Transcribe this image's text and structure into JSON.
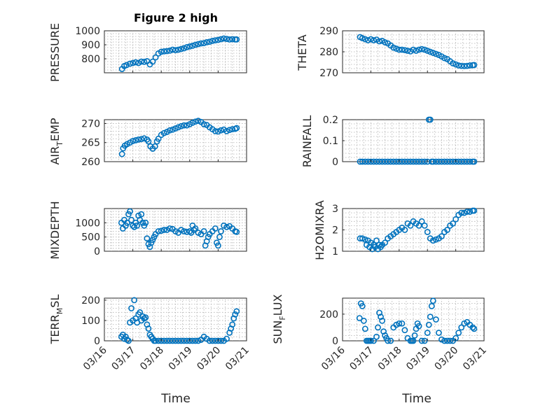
{
  "figure": {
    "title": "Figure 2 high",
    "xlabel": "Time"
  },
  "chart_data": [
    {
      "type": "scatter",
      "name": "pressure",
      "ylabel": "PRESSURE",
      "ylim": [
        700,
        1000
      ],
      "yticks": [
        800,
        900,
        1000
      ],
      "ytick_labels": [
        "800",
        "900",
        "1000"
      ],
      "xlim": [
        0,
        5
      ],
      "xticks": [
        0,
        1,
        2,
        3,
        4,
        5
      ],
      "xtick_labels": [
        "03/16",
        "03/17",
        "03/18",
        "03/19",
        "03/20",
        "03/21"
      ],
      "grid": true,
      "color": "#0072BD",
      "x": [
        0.62,
        0.7,
        0.78,
        0.9,
        1.0,
        1.1,
        1.2,
        1.3,
        1.4,
        1.5,
        1.6,
        1.7,
        1.8,
        1.9,
        2.0,
        2.1,
        2.2,
        2.3,
        2.4,
        2.5,
        2.6,
        2.7,
        2.8,
        2.9,
        3.0,
        3.1,
        3.2,
        3.3,
        3.4,
        3.5,
        3.6,
        3.7,
        3.8,
        3.9,
        4.0,
        4.1,
        4.2,
        4.3,
        4.4,
        4.5,
        4.6,
        4.65
      ],
      "y": [
        727,
        748,
        755,
        765,
        770,
        775,
        770,
        780,
        778,
        783,
        760,
        780,
        810,
        838,
        850,
        853,
        855,
        858,
        865,
        862,
        865,
        870,
        875,
        883,
        888,
        893,
        900,
        905,
        910,
        912,
        918,
        922,
        928,
        932,
        935,
        940,
        945,
        942,
        938,
        940,
        938,
        938
      ]
    },
    {
      "type": "scatter",
      "name": "theta",
      "ylabel": "THETA",
      "ylim": [
        270,
        290
      ],
      "yticks": [
        270,
        280,
        290
      ],
      "ytick_labels": [
        "270",
        "280",
        "290"
      ],
      "xlim": [
        0,
        5
      ],
      "xticks": [
        0,
        1,
        2,
        3,
        4,
        5
      ],
      "xtick_labels": [
        "03/16",
        "03/17",
        "03/18",
        "03/19",
        "03/20",
        "03/21"
      ],
      "grid": true,
      "color": "#0072BD",
      "x": [
        0.62,
        0.7,
        0.8,
        0.9,
        1.0,
        1.1,
        1.2,
        1.3,
        1.4,
        1.5,
        1.6,
        1.7,
        1.8,
        1.9,
        2.0,
        2.1,
        2.2,
        2.3,
        2.4,
        2.5,
        2.6,
        2.7,
        2.8,
        2.9,
        3.0,
        3.1,
        3.2,
        3.3,
        3.4,
        3.5,
        3.6,
        3.7,
        3.8,
        3.9,
        4.0,
        4.1,
        4.2,
        4.3,
        4.4,
        4.5,
        4.6,
        4.65
      ],
      "y": [
        287,
        286.5,
        286,
        285.5,
        286,
        285.5,
        285.8,
        285,
        285.2,
        284.5,
        284,
        283,
        282,
        281.5,
        281,
        281,
        280.8,
        280.5,
        280.2,
        281,
        280.5,
        281,
        281.3,
        281,
        280.5,
        280,
        279.5,
        279,
        278.5,
        277.8,
        277,
        276.5,
        275.5,
        274.5,
        274,
        273.5,
        273.3,
        273.2,
        273.3,
        273.5,
        273.6,
        273.7
      ]
    },
    {
      "type": "scatter",
      "name": "air-temp",
      "ylabel": "AIR_TEMP",
      "ylim": [
        260,
        271
      ],
      "yticks": [
        260,
        265,
        270
      ],
      "ytick_labels": [
        "260",
        "265",
        "270"
      ],
      "xlim": [
        0,
        5
      ],
      "xticks": [
        0,
        1,
        2,
        3,
        4,
        5
      ],
      "xtick_labels": [
        "03/16",
        "03/17",
        "03/18",
        "03/19",
        "03/20",
        "03/21"
      ],
      "grid": true,
      "color": "#0072BD",
      "x": [
        0.62,
        0.66,
        0.72,
        0.8,
        0.9,
        1.0,
        1.1,
        1.2,
        1.3,
        1.4,
        1.5,
        1.55,
        1.62,
        1.7,
        1.78,
        1.85,
        1.9,
        2.0,
        2.1,
        2.2,
        2.3,
        2.4,
        2.5,
        2.6,
        2.7,
        2.8,
        2.9,
        3.0,
        3.1,
        3.2,
        3.3,
        3.4,
        3.5,
        3.6,
        3.7,
        3.8,
        3.9,
        4.0,
        4.1,
        4.2,
        4.3,
        4.4,
        4.5,
        4.6,
        4.65
      ],
      "y": [
        262,
        263.5,
        264.2,
        264.6,
        265,
        265.4,
        265.6,
        265.8,
        265.9,
        266.1,
        265.8,
        265.3,
        264,
        263.4,
        264,
        265.3,
        266,
        267,
        267.5,
        267.8,
        268.2,
        268.4,
        268.7,
        269,
        269.3,
        269.5,
        269.5,
        269.8,
        270.2,
        270.5,
        270.7,
        270.4,
        269.8,
        269.6,
        269,
        268.5,
        268,
        267.9,
        268.2,
        268.4,
        268,
        268.3,
        268.5,
        268.6,
        268.8
      ]
    },
    {
      "type": "scatter",
      "name": "rainfall",
      "ylabel": "RAINFALL",
      "ylim": [
        0,
        0.2
      ],
      "yticks": [
        0,
        0.1,
        0.2
      ],
      "ytick_labels": [
        "0",
        "0.1",
        "0.2"
      ],
      "xlim": [
        0,
        5
      ],
      "xticks": [
        0,
        1,
        2,
        3,
        4,
        5
      ],
      "xtick_labels": [
        "03/16",
        "03/17",
        "03/18",
        "03/19",
        "03/20",
        "03/21"
      ],
      "grid": true,
      "color": "#0072BD",
      "x": [
        0.62,
        0.7,
        0.8,
        0.9,
        1.0,
        1.1,
        1.2,
        1.3,
        1.4,
        1.5,
        1.6,
        1.7,
        1.8,
        1.9,
        2.0,
        2.1,
        2.2,
        2.3,
        2.4,
        2.5,
        2.6,
        2.7,
        2.8,
        2.9,
        3.0,
        3.05,
        3.1,
        3.15,
        3.2,
        3.3,
        3.4,
        3.5,
        3.6,
        3.7,
        3.8,
        3.9,
        4.0,
        4.1,
        4.2,
        4.3,
        4.4,
        4.5,
        4.6,
        4.65
      ],
      "y": [
        0,
        0,
        0,
        0,
        0,
        0,
        0,
        0,
        0,
        0,
        0,
        0,
        0,
        0,
        0,
        0,
        0,
        0,
        0,
        0,
        0,
        0,
        0,
        0,
        0,
        0.2,
        0.2,
        0,
        0,
        0,
        0,
        0,
        0,
        0,
        0,
        0,
        0,
        0,
        0,
        0,
        0,
        0,
        0,
        0
      ]
    },
    {
      "type": "scatter",
      "name": "mixdepth",
      "ylabel": "MIXDEPTH",
      "ylim": [
        0,
        1500
      ],
      "yticks": [
        0,
        500,
        1000
      ],
      "ytick_labels": [
        "0",
        "500",
        "1000"
      ],
      "xlim": [
        0,
        5
      ],
      "xticks": [
        0,
        1,
        2,
        3,
        4,
        5
      ],
      "xtick_labels": [
        "03/16",
        "03/17",
        "03/18",
        "03/19",
        "03/20",
        "03/21"
      ],
      "grid": true,
      "color": "#0072BD",
      "x": [
        0.6,
        0.65,
        0.7,
        0.75,
        0.8,
        0.85,
        0.9,
        0.95,
        1.0,
        1.05,
        1.1,
        1.15,
        1.2,
        1.25,
        1.3,
        1.35,
        1.4,
        1.45,
        1.5,
        1.55,
        1.6,
        1.65,
        1.7,
        1.75,
        1.8,
        1.9,
        2.0,
        2.1,
        2.2,
        2.3,
        2.4,
        2.5,
        2.6,
        2.7,
        2.8,
        2.9,
        3.0,
        3.05,
        3.1,
        3.15,
        3.2,
        3.3,
        3.4,
        3.5,
        3.55,
        3.6,
        3.65,
        3.7,
        3.8,
        3.9,
        3.95,
        4.0,
        4.05,
        4.1,
        4.2,
        4.3,
        4.4,
        4.5,
        4.6,
        4.65
      ],
      "y": [
        1000,
        800,
        1100,
        900,
        1000,
        1300,
        1400,
        1100,
        900,
        850,
        1000,
        900,
        1250,
        1100,
        1300,
        1000,
        900,
        1000,
        450,
        250,
        150,
        300,
        400,
        500,
        600,
        700,
        720,
        750,
        750,
        800,
        780,
        700,
        650,
        750,
        700,
        680,
        700,
        650,
        900,
        750,
        800,
        650,
        600,
        700,
        200,
        350,
        500,
        600,
        700,
        800,
        300,
        200,
        500,
        700,
        900,
        850,
        880,
        800,
        700,
        680
      ]
    },
    {
      "type": "scatter",
      "name": "h2omixra",
      "ylabel": "H2OMIXRA",
      "ylim": [
        1,
        3
      ],
      "yticks": [
        1,
        2,
        3
      ],
      "ytick_labels": [
        "1",
        "2",
        "3"
      ],
      "xlim": [
        0,
        5
      ],
      "xticks": [
        0,
        1,
        2,
        3,
        4,
        5
      ],
      "xtick_labels": [
        "03/16",
        "03/17",
        "03/18",
        "03/19",
        "03/20",
        "03/21"
      ],
      "grid": true,
      "color": "#0072BD",
      "x": [
        0.62,
        0.7,
        0.8,
        0.85,
        0.9,
        0.95,
        1.0,
        1.05,
        1.1,
        1.15,
        1.2,
        1.25,
        1.3,
        1.35,
        1.4,
        1.5,
        1.6,
        1.7,
        1.8,
        1.9,
        2.0,
        2.1,
        2.2,
        2.3,
        2.4,
        2.5,
        2.6,
        2.7,
        2.8,
        2.9,
        3.0,
        3.1,
        3.2,
        3.3,
        3.4,
        3.5,
        3.6,
        3.7,
        3.8,
        3.9,
        4.0,
        4.1,
        4.2,
        4.3,
        4.4,
        4.5,
        4.6,
        4.65
      ],
      "y": [
        1.6,
        1.6,
        1.55,
        1.3,
        1.5,
        1.2,
        1.4,
        1.1,
        1.3,
        1.2,
        1.5,
        1.1,
        1.3,
        1.2,
        1.3,
        1.4,
        1.6,
        1.7,
        1.8,
        1.9,
        2.0,
        2.1,
        2.0,
        2.3,
        2.2,
        2.4,
        2.3,
        2.2,
        2.4,
        2.2,
        1.9,
        1.6,
        1.5,
        1.55,
        1.6,
        1.7,
        1.9,
        2.0,
        2.2,
        2.3,
        2.5,
        2.7,
        2.8,
        2.8,
        2.85,
        2.85,
        2.9,
        2.9
      ]
    },
    {
      "type": "scatter",
      "name": "terr-msl",
      "ylabel": "TERR_MSL",
      "ylim": [
        0,
        210
      ],
      "yticks": [
        0,
        100,
        200
      ],
      "ytick_labels": [
        "0",
        "100",
        "200"
      ],
      "xlim": [
        0,
        5
      ],
      "xticks": [
        0,
        1,
        2,
        3,
        4,
        5
      ],
      "xtick_labels": [
        "03/16",
        "03/17",
        "03/18",
        "03/19",
        "03/20",
        "03/21"
      ],
      "grid": true,
      "color": "#0072BD",
      "x": [
        0.6,
        0.65,
        0.7,
        0.75,
        0.8,
        0.85,
        0.9,
        0.95,
        1.0,
        1.05,
        1.1,
        1.15,
        1.2,
        1.25,
        1.3,
        1.35,
        1.4,
        1.45,
        1.5,
        1.55,
        1.6,
        1.65,
        1.7,
        1.75,
        1.8,
        1.9,
        2.0,
        2.1,
        2.2,
        2.3,
        2.4,
        2.5,
        2.6,
        2.7,
        2.8,
        2.9,
        3.0,
        3.1,
        3.2,
        3.3,
        3.4,
        3.5,
        3.6,
        3.7,
        3.8,
        3.9,
        4.0,
        4.1,
        4.2,
        4.3,
        4.4,
        4.45,
        4.5,
        4.55,
        4.6,
        4.65
      ],
      "y": [
        20,
        30,
        10,
        20,
        5,
        0,
        90,
        160,
        100,
        200,
        110,
        90,
        130,
        140,
        100,
        120,
        110,
        115,
        80,
        60,
        30,
        20,
        10,
        0,
        0,
        0,
        0,
        0,
        0,
        0,
        0,
        0,
        0,
        0,
        0,
        0,
        0,
        0,
        0,
        0,
        5,
        20,
        10,
        0,
        0,
        0,
        0,
        0,
        0,
        10,
        40,
        60,
        80,
        110,
        130,
        145
      ]
    },
    {
      "type": "scatter",
      "name": "sun-flux",
      "ylabel": "SUN_FLUX",
      "ylim": [
        0,
        320
      ],
      "yticks": [
        0,
        200
      ],
      "ytick_labels": [
        "0",
        "200"
      ],
      "xlim": [
        0,
        5
      ],
      "xticks": [
        0,
        1,
        2,
        3,
        4,
        5
      ],
      "xtick_labels": [
        "03/16",
        "03/17",
        "03/18",
        "03/19",
        "03/20",
        "03/21"
      ],
      "grid": true,
      "color": "#0072BD",
      "x": [
        0.6,
        0.65,
        0.7,
        0.75,
        0.8,
        0.85,
        0.9,
        0.95,
        1.0,
        1.1,
        1.2,
        1.25,
        1.3,
        1.35,
        1.4,
        1.45,
        1.5,
        1.55,
        1.6,
        1.7,
        1.8,
        1.9,
        2.0,
        2.1,
        2.2,
        2.3,
        2.4,
        2.45,
        2.5,
        2.55,
        2.6,
        2.65,
        2.7,
        2.8,
        2.9,
        3.0,
        3.05,
        3.1,
        3.15,
        3.2,
        3.3,
        3.4,
        3.5,
        3.6,
        3.7,
        3.8,
        3.9,
        4.0,
        4.1,
        4.2,
        4.3,
        4.4,
        4.5,
        4.6,
        4.65
      ],
      "y": [
        170,
        280,
        260,
        150,
        90,
        0,
        0,
        0,
        0,
        0,
        30,
        100,
        210,
        180,
        150,
        70,
        40,
        20,
        0,
        0,
        100,
        120,
        130,
        130,
        80,
        20,
        0,
        0,
        0,
        40,
        90,
        130,
        110,
        0,
        0,
        60,
        120,
        180,
        260,
        300,
        160,
        60,
        10,
        0,
        0,
        0,
        0,
        20,
        60,
        100,
        130,
        140,
        120,
        100,
        90
      ]
    }
  ]
}
